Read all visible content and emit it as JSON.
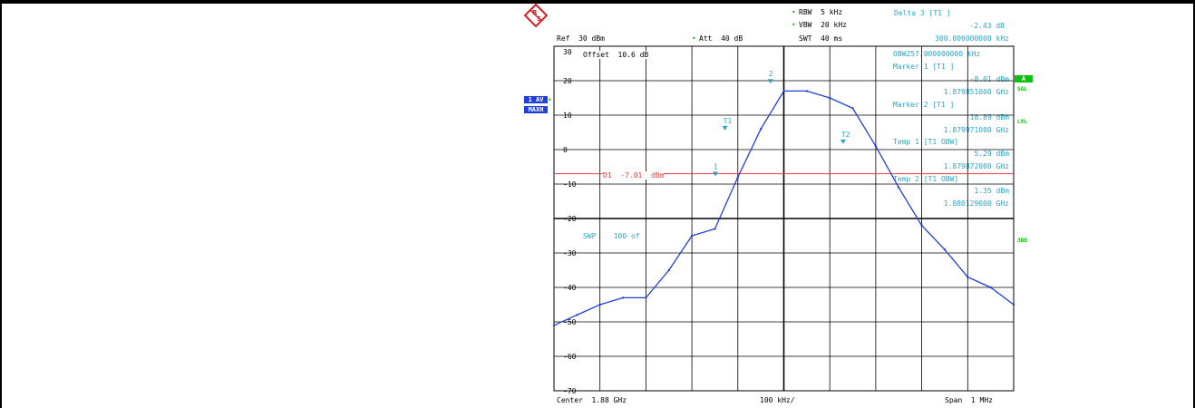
{
  "header": {
    "rbw_label": "RBW  5 kHz",
    "vbw_label": "VBW  20 kHz",
    "ref_label": "Ref  30 dBm",
    "att_label": "Att  40 dB",
    "swt_label": "SWT  40 ms",
    "offset_label": "Offset  10.6 dB"
  },
  "logo": {
    "letters": [
      "R",
      "S"
    ]
  },
  "readout": [
    "Delta 3 [T1 ]",
    "-2.43 dB",
    "300.000000000 kHz",
    "OBW257.000000000 kHz",
    "Marker 1 [T1 ]",
    "-8.01 dBm",
    "1.879851000 GHz",
    "Marker 2 [T1 ]",
    "18.89 dBm",
    "1.879971000 GHz",
    "Temp 1 [T1 OBW]",
    "5.29 dBm",
    "1.879872000 GHz",
    "Temp 2 [T1 OBW]",
    "1.35 dBm",
    "1.880129000 GHz"
  ],
  "left_badges": {
    "trace": "1 AV",
    "mode": "MAXH"
  },
  "right_badges": {
    "a": "A",
    "sgl": "SGL",
    "lvl": "LVL",
    "tdb": "3DB"
  },
  "footer": {
    "center_label": "Center  1.88 GHz",
    "div_label": "100 kHz/",
    "span_label": "Span  1 MHz"
  },
  "overlay": {
    "d1_label": "D1  -7.01  dBm",
    "swp_label": "SWP    100 of"
  },
  "marker_labels": {
    "m1": "1",
    "m2": "2",
    "t2": "T2"
  },
  "colors": {
    "trace": "#1f3fd8",
    "grid": "#000000",
    "display_line": "#e04040",
    "readout": "#2aa6c4",
    "status_green": "#10c010"
  },
  "chart_data": {
    "type": "line",
    "title": "",
    "xlabel": "Center 1.88 GHz   100 kHz/   Span 1 MHz",
    "ylabel": "",
    "x_unit": "GHz",
    "xlim": [
      1.8795,
      1.8805
    ],
    "ylim": [
      -70,
      30
    ],
    "y_ticks": [
      30,
      20,
      10,
      0,
      -10,
      -20,
      -30,
      -40,
      -50,
      -60,
      -70
    ],
    "y_tick_labels": [
      "30",
      "20",
      "10",
      "0",
      "-10",
      "-20",
      "-30",
      "-40",
      "-50",
      "-60",
      "-70"
    ],
    "grid": true,
    "display_line": {
      "label": "D1 -7.01 dBm",
      "value": -7.01
    },
    "series": [
      {
        "x": [
          1.8795,
          1.87955,
          1.8796,
          1.87965,
          1.8797,
          1.87975,
          1.8798,
          1.87985,
          1.8799,
          1.87995,
          1.88,
          1.88005,
          1.8801,
          1.88015,
          1.8802,
          1.88025,
          1.8803,
          1.88035,
          1.8804,
          1.88045,
          1.8805
        ],
        "values": [
          -51,
          -48,
          -45,
          -43,
          -43,
          -35,
          -25,
          -23,
          -8,
          6,
          17,
          17,
          15,
          12,
          1,
          -11,
          -22,
          -29,
          -37,
          -40,
          -45
        ]
      }
    ],
    "markers": [
      {
        "label": "2",
        "x": 1.879971,
        "y": 18.89
      },
      {
        "label": "1",
        "x": 1.879851,
        "y": -8.01
      },
      {
        "label": "T2",
        "x": 1.880129,
        "y": 1.35
      },
      {
        "label": "T1",
        "x": 1.879872,
        "y": 5.29
      }
    ]
  }
}
